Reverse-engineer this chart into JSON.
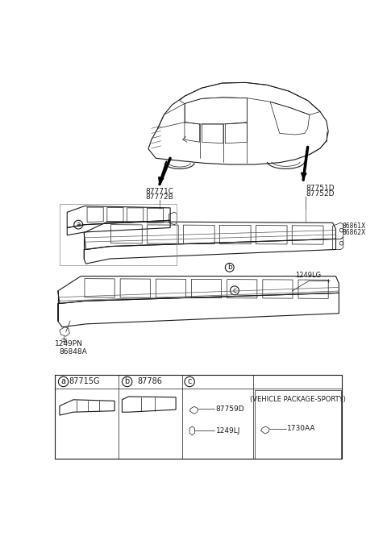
{
  "bg_color": "#ffffff",
  "line_color": "#1a1a1a",
  "part_labels": {
    "car_left": [
      "87771C",
      "87772B"
    ],
    "car_right": [
      "87751D",
      "87752D"
    ],
    "bracket_right": [
      "86861X",
      "86862X"
    ],
    "screw_label": "1249LG",
    "clip_label": "1249PN",
    "clip2_label": "86848A"
  },
  "legend": {
    "a_code": "87715G",
    "b_code": "87786",
    "c_items": [
      "87759D",
      "1249LJ"
    ],
    "sporty_items": [
      "(VEHICLE PACKAGE-SPORTY)",
      "1730AA"
    ]
  }
}
